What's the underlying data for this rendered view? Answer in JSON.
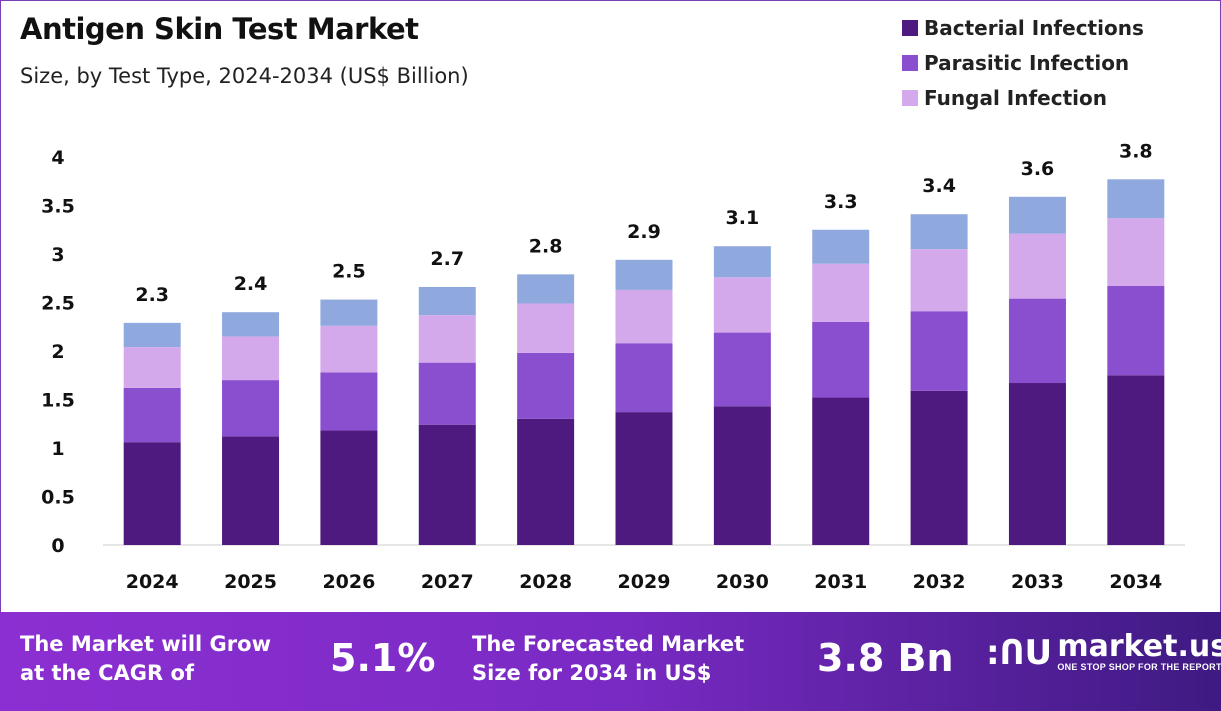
{
  "chart_data": {
    "type": "bar",
    "stacked": true,
    "title": "Antigen Skin Test Market",
    "subtitle": "Size, by Test Type, 2024-2034 (US$ Billion)",
    "xlabel": "",
    "ylabel": "",
    "categories": [
      "2024",
      "2025",
      "2026",
      "2027",
      "2028",
      "2029",
      "2030",
      "2031",
      "2032",
      "2033",
      "2034"
    ],
    "ylim": [
      0,
      4
    ],
    "yticks": [
      "0",
      "0.5",
      "1",
      "1.5",
      "2",
      "2.5",
      "3",
      "3.5",
      "4"
    ],
    "grid": false,
    "legend_position": "top-right",
    "series": [
      {
        "name": "Bacterial Infections",
        "color": "#4e1a7f",
        "values": [
          1.06,
          1.12,
          1.18,
          1.24,
          1.3,
          1.37,
          1.43,
          1.52,
          1.59,
          1.67,
          1.75
        ]
      },
      {
        "name": "Parasitic Infection",
        "color": "#8a4fce",
        "values": [
          0.56,
          0.58,
          0.6,
          0.64,
          0.68,
          0.71,
          0.76,
          0.78,
          0.82,
          0.87,
          0.92
        ]
      },
      {
        "name": "Fungal Infection",
        "color": "#d4a9ec",
        "values": [
          0.42,
          0.45,
          0.48,
          0.49,
          0.51,
          0.55,
          0.57,
          0.6,
          0.64,
          0.67,
          0.7
        ]
      },
      {
        "color": "#8fa8de",
        "values": [
          0.25,
          0.25,
          0.27,
          0.29,
          0.3,
          0.31,
          0.32,
          0.35,
          0.36,
          0.38,
          0.4
        ]
      }
    ],
    "total_labels": [
      "2.3",
      "2.4",
      "2.5",
      "2.7",
      "2.8",
      "2.9",
      "3.1",
      "3.3",
      "3.4",
      "3.6",
      "3.8"
    ]
  },
  "footer": {
    "cagr_text_1": "The Market will Grow",
    "cagr_text_2": "at the CAGR of",
    "cagr_value": "5.1%",
    "forecast_text_1": "The Forecasted Market",
    "forecast_text_2": "Size for 2034 in US$",
    "forecast_value": "3.8 Bn",
    "logo_name": "market.us",
    "logo_tagline": "ONE STOP SHOP FOR THE REPORTS"
  }
}
